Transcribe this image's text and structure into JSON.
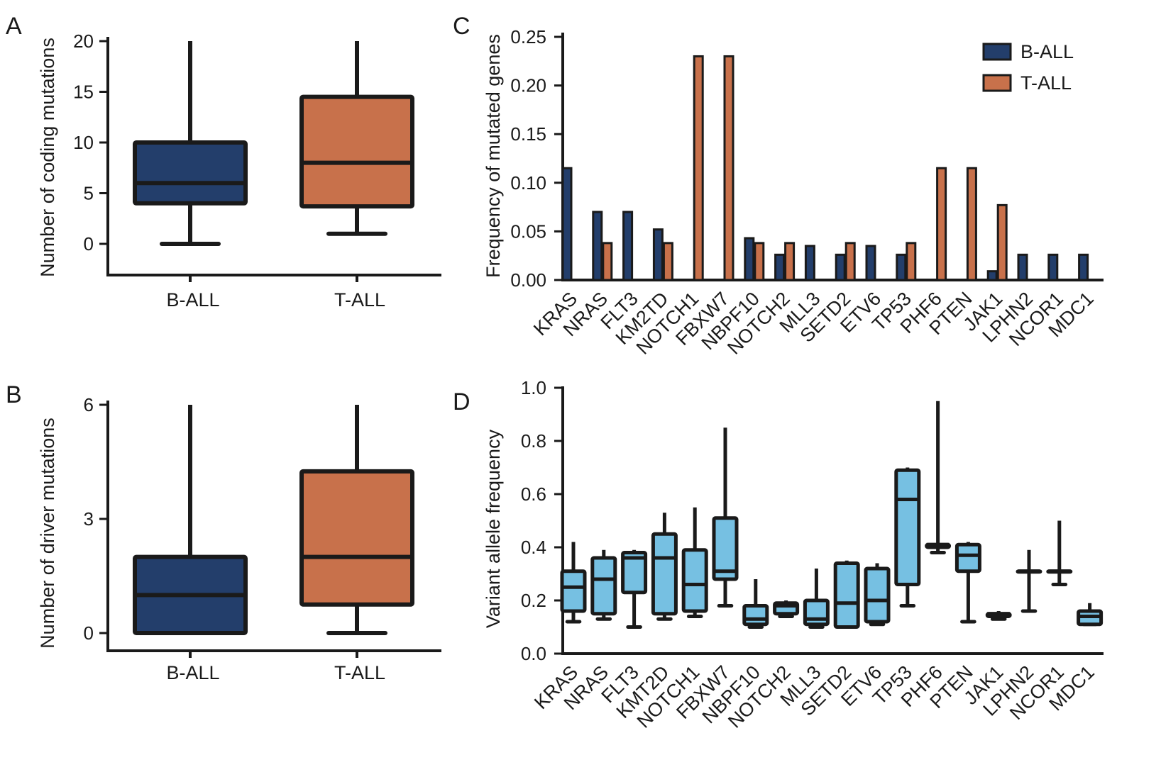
{
  "figure": {
    "panels": {
      "A": {
        "letter": "A"
      },
      "B": {
        "letter": "B"
      },
      "C": {
        "letter": "C"
      },
      "D": {
        "letter": "D"
      }
    }
  },
  "colors": {
    "b_all": "#233e6b",
    "t_all": "#c8714b",
    "vaf_box": "#76c0e2",
    "stroke": "#1a1a1a"
  },
  "chart_data": [
    {
      "panel": "A",
      "type": "box",
      "ylabel": "Number of coding mutations",
      "categories": [
        "B-ALL",
        "T-ALL"
      ],
      "yticks": [
        0,
        5,
        10,
        15,
        20
      ],
      "ylim": [
        -3,
        20
      ],
      "boxes": [
        {
          "category": "B-ALL",
          "whisker_low": 0,
          "q1": 4,
          "median": 6,
          "q3": 10,
          "whisker_high": 20,
          "color": "#233e6b"
        },
        {
          "category": "T-ALL",
          "whisker_low": 1,
          "q1": 3.7,
          "median": 8,
          "q3": 14.5,
          "whisker_high": 20,
          "color": "#c8714b"
        }
      ]
    },
    {
      "panel": "B",
      "type": "box",
      "ylabel": "Number of driver mutations",
      "categories": [
        "B-ALL",
        "T-ALL"
      ],
      "yticks": [
        0,
        3,
        6
      ],
      "ylim": [
        -0.5,
        6
      ],
      "boxes": [
        {
          "category": "B-ALL",
          "whisker_low": 0,
          "q1": 0,
          "median": 1,
          "q3": 2,
          "whisker_high": 6,
          "color": "#233e6b"
        },
        {
          "category": "T-ALL",
          "whisker_low": 0,
          "q1": 0.75,
          "median": 2,
          "q3": 4.25,
          "whisker_high": 6,
          "color": "#c8714b"
        }
      ]
    },
    {
      "panel": "C",
      "type": "bar",
      "ylabel": "Frequency of mutated genes",
      "yticks": [
        "0.00",
        "0.05",
        "0.10",
        "0.15",
        "0.20",
        "0.25"
      ],
      "ylim": [
        0,
        0.25
      ],
      "legend_position": "top-right",
      "categories": [
        "KRAS",
        "NRAS",
        "FLT3",
        "KM2TD",
        "NOTCH1",
        "FBXW7",
        "NBPF10",
        "NOTCH2",
        "MLL3",
        "SETD2",
        "ETV6",
        "TP53",
        "PHF6",
        "PTEN",
        "JAK1",
        "LPHN2",
        "NCOR1",
        "MDC1"
      ],
      "series": [
        {
          "name": "B-ALL",
          "color": "#233e6b",
          "values": [
            0.115,
            0.07,
            0.07,
            0.052,
            0,
            0,
            0.043,
            0.026,
            0.035,
            0.026,
            0.035,
            0.026,
            0,
            0,
            0.009,
            0.026,
            0.026,
            0.026
          ]
        },
        {
          "name": "T-ALL",
          "color": "#c8714b",
          "values": [
            0,
            0.038,
            0,
            0.038,
            0.23,
            0.23,
            0.038,
            0.038,
            0,
            0.038,
            0,
            0.038,
            0.115,
            0.115,
            0.077,
            0,
            0,
            0
          ]
        }
      ]
    },
    {
      "panel": "D",
      "type": "box",
      "ylabel": "Variant allele frequency",
      "yticks": [
        "0.0",
        "0.2",
        "0.4",
        "0.6",
        "0.8",
        "1.0"
      ],
      "ylim": [
        0,
        1.0
      ],
      "categories": [
        "KRAS",
        "NRAS",
        "FLT3",
        "KMT2D",
        "NOTCH1",
        "FBXW7",
        "NBPF10",
        "NOTCH2",
        "MLL3",
        "SETD2",
        "ETV6",
        "TP53",
        "PHF6",
        "PTEN",
        "JAK1",
        "LPHN2",
        "NCOR1",
        "MDC1"
      ],
      "boxes": [
        {
          "category": "KRAS",
          "whisker_low": 0.12,
          "q1": 0.16,
          "median": 0.25,
          "q3": 0.31,
          "whisker_high": 0.42
        },
        {
          "category": "NRAS",
          "whisker_low": 0.13,
          "q1": 0.15,
          "median": 0.28,
          "q3": 0.36,
          "whisker_high": 0.39
        },
        {
          "category": "FLT3",
          "whisker_low": 0.1,
          "q1": 0.23,
          "median": 0.36,
          "q3": 0.38,
          "whisker_high": 0.39
        },
        {
          "category": "KMT2D",
          "whisker_low": 0.13,
          "q1": 0.15,
          "median": 0.36,
          "q3": 0.45,
          "whisker_high": 0.53
        },
        {
          "category": "NOTCH1",
          "whisker_low": 0.14,
          "q1": 0.16,
          "median": 0.26,
          "q3": 0.39,
          "whisker_high": 0.55
        },
        {
          "category": "FBXW7",
          "whisker_low": 0.18,
          "q1": 0.28,
          "median": 0.31,
          "q3": 0.51,
          "whisker_high": 0.85
        },
        {
          "category": "NBPF10",
          "whisker_low": 0.1,
          "q1": 0.11,
          "median": 0.13,
          "q3": 0.18,
          "whisker_high": 0.28
        },
        {
          "category": "NOTCH2",
          "whisker_low": 0.14,
          "q1": 0.15,
          "median": 0.18,
          "q3": 0.19,
          "whisker_high": 0.2
        },
        {
          "category": "MLL3",
          "whisker_low": 0.1,
          "q1": 0.11,
          "median": 0.13,
          "q3": 0.2,
          "whisker_high": 0.32
        },
        {
          "category": "SETD2",
          "whisker_low": 0.1,
          "q1": 0.1,
          "median": 0.19,
          "q3": 0.34,
          "whisker_high": 0.35
        },
        {
          "category": "ETV6",
          "whisker_low": 0.11,
          "q1": 0.12,
          "median": 0.2,
          "q3": 0.32,
          "whisker_high": 0.34
        },
        {
          "category": "TP53",
          "whisker_low": 0.18,
          "q1": 0.26,
          "median": 0.58,
          "q3": 0.69,
          "whisker_high": 0.7
        },
        {
          "category": "PHF6",
          "whisker_low": 0.38,
          "q1": 0.4,
          "median": 0.41,
          "q3": 0.41,
          "whisker_high": 0.95
        },
        {
          "category": "PTEN",
          "whisker_low": 0.12,
          "q1": 0.31,
          "median": 0.37,
          "q3": 0.41,
          "whisker_high": 0.42
        },
        {
          "category": "JAK1",
          "whisker_low": 0.13,
          "q1": 0.14,
          "median": 0.15,
          "q3": 0.15,
          "whisker_high": 0.16
        },
        {
          "category": "LPHN2",
          "whisker_low": 0.16,
          "q1": 0.31,
          "median": 0.31,
          "q3": 0.31,
          "whisker_high": 0.39
        },
        {
          "category": "NCOR1",
          "whisker_low": 0.26,
          "q1": 0.31,
          "median": 0.31,
          "q3": 0.31,
          "whisker_high": 0.5
        },
        {
          "category": "MDC1",
          "whisker_low": 0.11,
          "q1": 0.11,
          "median": 0.14,
          "q3": 0.16,
          "whisker_high": 0.19
        }
      ]
    }
  ]
}
